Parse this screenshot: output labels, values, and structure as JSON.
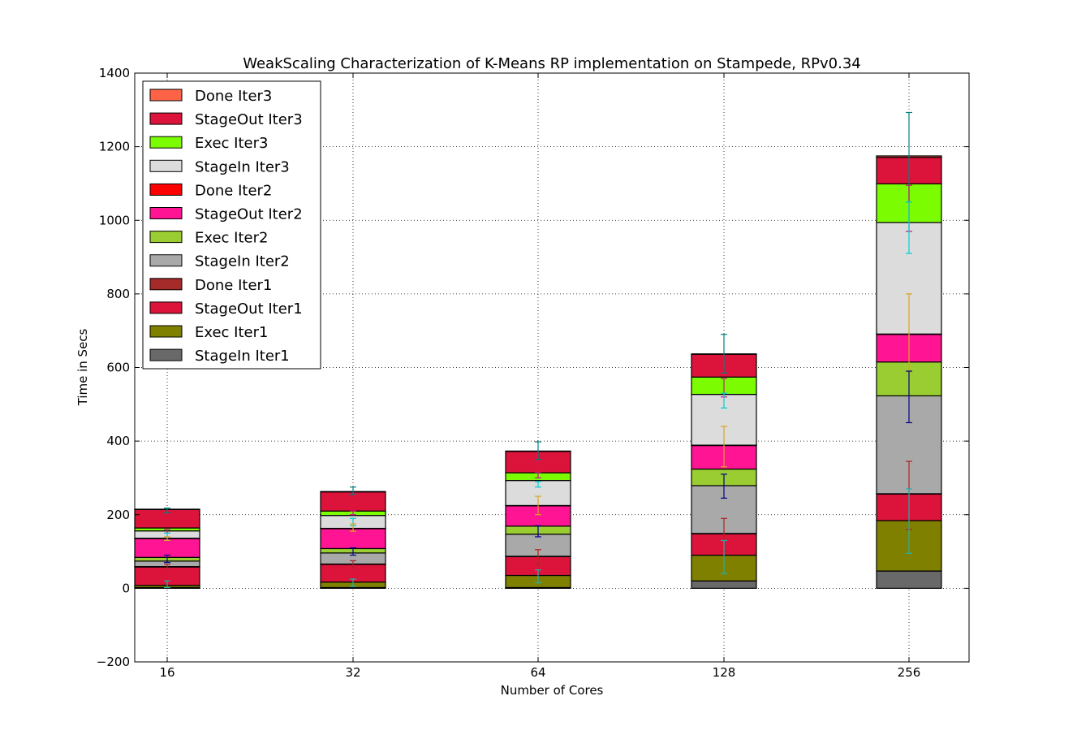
{
  "chart_data": {
    "type": "bar",
    "stacked": true,
    "title": "WeakScaling Characterization of K-Means RP implementation on Stampede, RPv0.34",
    "xlabel": "Number of Cores",
    "ylabel": "Time in Secs",
    "categories": [
      "16",
      "32",
      "64",
      "128",
      "256"
    ],
    "ylim": [
      -200,
      1400
    ],
    "yticks": [
      -200,
      0,
      200,
      400,
      600,
      800,
      1000,
      1200,
      1400
    ],
    "grid": true,
    "legend_position": "top-left",
    "series": [
      {
        "name": "StageIn Iter1",
        "color": "#696969",
        "values": [
          2,
          2,
          2,
          20,
          47
        ]
      },
      {
        "name": "Exec Iter1",
        "color": "#808000",
        "values": [
          6,
          15,
          33,
          70,
          137
        ]
      },
      {
        "name": "StageOut Iter1",
        "color": "#dc143c",
        "values": [
          50,
          48,
          51,
          58,
          72
        ]
      },
      {
        "name": "Done Iter1",
        "color": "#a52a2a",
        "values": [
          1,
          1,
          1,
          1,
          1
        ]
      },
      {
        "name": "StageIn Iter2",
        "color": "#a9a9a9",
        "values": [
          15,
          30,
          60,
          130,
          266
        ]
      },
      {
        "name": "Exec Iter2",
        "color": "#9acd32",
        "values": [
          10,
          12,
          22,
          45,
          92
        ]
      },
      {
        "name": "StageOut Iter2",
        "color": "#ff1493",
        "values": [
          51,
          54,
          55,
          64,
          75
        ]
      },
      {
        "name": "Done Iter2",
        "color": "#ff0000",
        "values": [
          1,
          1,
          1,
          1,
          1
        ]
      },
      {
        "name": "StageIn Iter3",
        "color": "#dcdcdc",
        "values": [
          20,
          35,
          68,
          138,
          303
        ]
      },
      {
        "name": "Exec Iter3",
        "color": "#7cfc00",
        "values": [
          8,
          12,
          21,
          47,
          105
        ]
      },
      {
        "name": "StageOut Iter3",
        "color": "#dc143c",
        "values": [
          50,
          52,
          58,
          62,
          72
        ]
      },
      {
        "name": "Done Iter3",
        "color": "#ff6347",
        "values": [
          1,
          1,
          1,
          1,
          4
        ]
      }
    ],
    "error_bars": [
      {
        "color": "#008080",
        "top": [
          218,
          275,
          398,
          690,
          1293
        ],
        "bottom": [
          205,
          255,
          350,
          585,
          1050
        ]
      },
      {
        "color": "#c71585",
        "top": [
          160,
          210,
          315,
          570,
          1095
        ],
        "bottom": [
          150,
          200,
          300,
          520,
          970
        ]
      },
      {
        "color": "#00ced1",
        "top": [
          150,
          190,
          290,
          530,
          1050
        ],
        "bottom": [
          130,
          170,
          275,
          490,
          910
        ]
      },
      {
        "color": "#daa520",
        "top": [
          140,
          175,
          250,
          440,
          800
        ],
        "bottom": [
          130,
          155,
          200,
          330,
          590
        ]
      },
      {
        "color": "#00008b",
        "top": [
          90,
          110,
          170,
          310,
          590
        ],
        "bottom": [
          70,
          90,
          140,
          245,
          450
        ]
      },
      {
        "color": "#b22222",
        "top": [
          65,
          75,
          105,
          190,
          345
        ],
        "bottom": [
          55,
          55,
          65,
          100,
          160
        ]
      },
      {
        "color": "#20b2aa",
        "top": [
          20,
          25,
          50,
          130,
          270
        ],
        "bottom": [
          2,
          5,
          15,
          40,
          95
        ]
      }
    ]
  }
}
